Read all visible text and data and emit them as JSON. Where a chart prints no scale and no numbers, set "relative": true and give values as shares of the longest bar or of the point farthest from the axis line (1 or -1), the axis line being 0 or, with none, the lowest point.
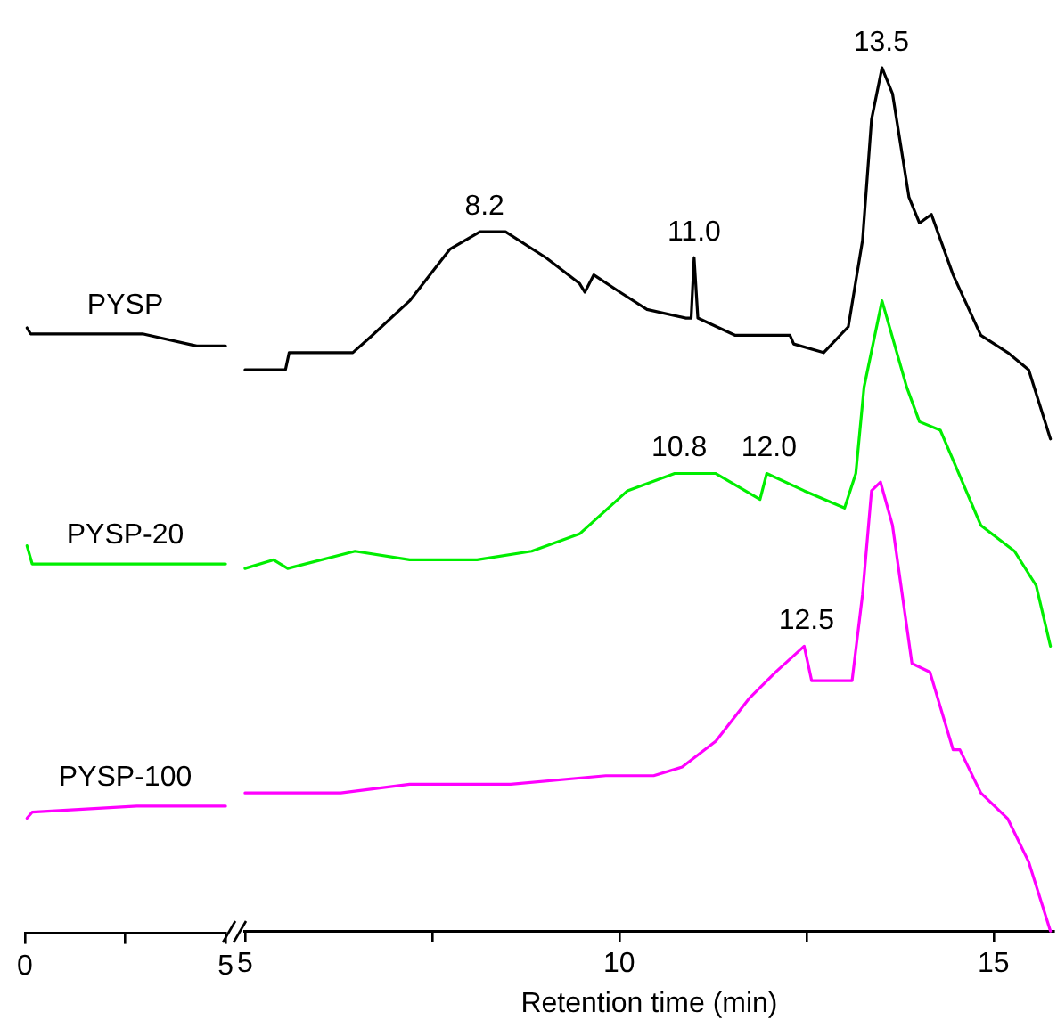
{
  "chart_data": [
    {
      "type": "line",
      "relative": true,
      "xlim": [
        0,
        5
      ],
      "xticks": [
        0,
        {
          "value": 2.5,
          "label": null
        },
        5
      ],
      "grid": false,
      "legend": false,
      "marker": "none",
      "line_style": "solid",
      "series": [
        {
          "name": "PYSP",
          "color": "#000000",
          "x": [
            0.05,
            0.14,
            1.35,
            2.93,
            4.28,
            5.0
          ],
          "values": [
            1.0,
            0.99,
            0.99,
            0.99,
            0.97,
            0.97
          ]
        },
        {
          "name": "PYSP-20",
          "color": "#00ee00",
          "x": [
            0.05,
            0.18,
            2.93,
            5.0
          ],
          "values": [
            0.64,
            0.61,
            0.61,
            0.61
          ]
        },
        {
          "name": "PYSP-100",
          "color": "#ff00ff",
          "x": [
            0.05,
            0.18,
            2.79,
            5.0
          ],
          "values": [
            0.19,
            0.2,
            0.21,
            0.21
          ]
        }
      ]
    },
    {
      "type": "line",
      "relative": true,
      "xlim": [
        5,
        15.8
      ],
      "xticks": [
        5,
        {
          "value": 7.5,
          "label": null
        },
        10,
        {
          "value": 12.5,
          "label": null
        },
        15
      ],
      "xlabel": "Retention time (min)",
      "grid": false,
      "legend": false,
      "marker": "none",
      "line_style": "solid",
      "annotations": [
        {
          "text": "8.2",
          "x": 8.2,
          "y": 0.81
        },
        {
          "text": "11.0",
          "x": 11.0,
          "y": 0.78
        },
        {
          "text": "13.5",
          "x": 13.5,
          "y": 1.0
        },
        {
          "text": "10.8",
          "x": 10.8,
          "y": 0.53
        },
        {
          "text": "12.0",
          "x": 12.0,
          "y": 0.53
        },
        {
          "text": "12.5",
          "x": 12.5,
          "y": 0.33
        }
      ],
      "series": [
        {
          "color": "#000000",
          "x": [
            5.0,
            5.54,
            5.59,
            6.44,
            6.7,
            7.2,
            7.74,
            8.14,
            8.48,
            9.02,
            9.47,
            9.54,
            9.66,
            10.01,
            10.37,
            10.89,
            10.96,
            11.0,
            11.05,
            11.55,
            12.28,
            12.33,
            12.73,
            13.06,
            13.25,
            13.37,
            13.51,
            13.65,
            13.87,
            14.01,
            14.17,
            14.46,
            14.83,
            15.19,
            15.47,
            15.76
          ],
          "values": [
            0.65,
            0.65,
            0.67,
            0.67,
            0.69,
            0.73,
            0.79,
            0.81,
            0.81,
            0.78,
            0.75,
            0.74,
            0.76,
            0.74,
            0.72,
            0.71,
            0.71,
            0.78,
            0.71,
            0.69,
            0.69,
            0.68,
            0.67,
            0.7,
            0.8,
            0.94,
            1.0,
            0.97,
            0.85,
            0.82,
            0.83,
            0.76,
            0.69,
            0.67,
            0.65,
            0.57
          ]
        },
        {
          "color": "#00ee00",
          "x": [
            5.0,
            5.38,
            5.57,
            6.47,
            7.2,
            8.1,
            8.83,
            9.47,
            10.11,
            10.74,
            11.29,
            11.88,
            11.97,
            12.47,
            13.01,
            13.16,
            13.27,
            13.51,
            13.84,
            14.01,
            14.29,
            14.83,
            15.28,
            15.57,
            15.76
          ],
          "values": [
            0.42,
            0.43,
            0.42,
            0.44,
            0.43,
            0.43,
            0.44,
            0.46,
            0.51,
            0.53,
            0.53,
            0.5,
            0.53,
            0.51,
            0.49,
            0.53,
            0.63,
            0.73,
            0.63,
            0.59,
            0.58,
            0.47,
            0.44,
            0.4,
            0.33
          ]
        },
        {
          "color": "#ff00ff",
          "x": [
            5.0,
            6.28,
            7.2,
            8.55,
            9.82,
            10.46,
            10.84,
            11.29,
            11.74,
            12.09,
            12.47,
            12.57,
            13.11,
            13.25,
            13.37,
            13.49,
            13.65,
            13.91,
            14.15,
            14.46,
            14.55,
            14.83,
            15.19,
            15.47,
            15.76
          ],
          "values": [
            0.16,
            0.16,
            0.17,
            0.17,
            0.18,
            0.18,
            0.19,
            0.22,
            0.27,
            0.3,
            0.33,
            0.29,
            0.29,
            0.39,
            0.51,
            0.52,
            0.47,
            0.31,
            0.3,
            0.21,
            0.21,
            0.16,
            0.13,
            0.08,
            0
          ]
        }
      ]
    }
  ]
}
